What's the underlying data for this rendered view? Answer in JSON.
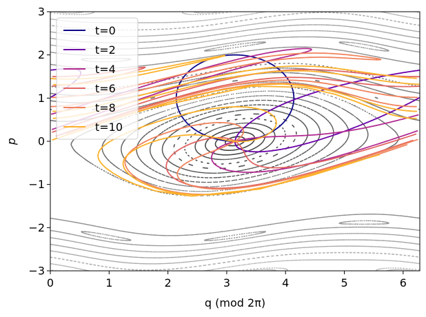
{
  "chart_data": {
    "type": "line",
    "xlabel": "q (mod 2π)",
    "ylabel": "p",
    "xlim": [
      0,
      6.2832
    ],
    "ylim": [
      -3,
      3
    ],
    "x_ticks": [
      "0",
      "1",
      "2",
      "3",
      "4",
      "5",
      "6"
    ],
    "y_ticks": [
      "−3",
      "−2",
      "−1",
      "0",
      "1",
      "2",
      "3"
    ],
    "legend_position": "top-left",
    "background": "Poincaré section of a pendulum-like map: grey dotted invariant curves around the elliptic point (π, 0); open rotational curves above and below",
    "series": [
      {
        "name": "t=0",
        "color": "#0d0887",
        "description": "circle of radius 1 centred at (π, 1)"
      },
      {
        "name": "t=2",
        "color": "#6a00a8",
        "description": "curve wound around (π, 0), tip reaching q≈5.8, p≈0.5"
      },
      {
        "name": "t=4",
        "color": "#b12a90",
        "description": "further wound curve"
      },
      {
        "name": "t=6",
        "color": "#e16462",
        "description": "further wound curve"
      },
      {
        "name": "t=8",
        "color": "#f0835c",
        "description": "further wound curve"
      },
      {
        "name": "t=10",
        "color": "#fcb12a",
        "description": "further wound curve"
      }
    ]
  }
}
